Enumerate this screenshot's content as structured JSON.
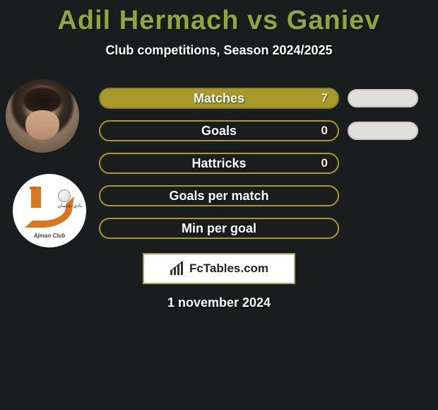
{
  "title": "Adil Hermach vs Ganiev",
  "subtitle": "Club competitions, Season 2024/2025",
  "players": {
    "left_name": "Adil Hermach",
    "right_name": "Ganiev",
    "left_club_ar": "نادي عجمان",
    "left_club_en": "Ajman Club"
  },
  "stats": [
    {
      "label": "Matches",
      "left_value": "7",
      "left_filled": true,
      "show_right": true
    },
    {
      "label": "Goals",
      "left_value": "0",
      "left_filled": false,
      "show_right": true
    },
    {
      "label": "Hattricks",
      "left_value": "0",
      "left_filled": false,
      "show_right": false
    },
    {
      "label": "Goals per match",
      "left_value": "",
      "left_filled": false,
      "show_right": false
    },
    {
      "label": "Min per goal",
      "left_value": "",
      "left_filled": false,
      "show_right": false
    }
  ],
  "colors": {
    "accent": "#8fa83b",
    "bar_fill": "#a79a2b",
    "bar_border": "#8c8024",
    "right_bar_fill": "#e0dfd8",
    "right_bar_border": "#c9c8c0",
    "background": "#1a1d1e"
  },
  "footer": {
    "brand": "FcTables.com",
    "date": "1 november 2024"
  }
}
